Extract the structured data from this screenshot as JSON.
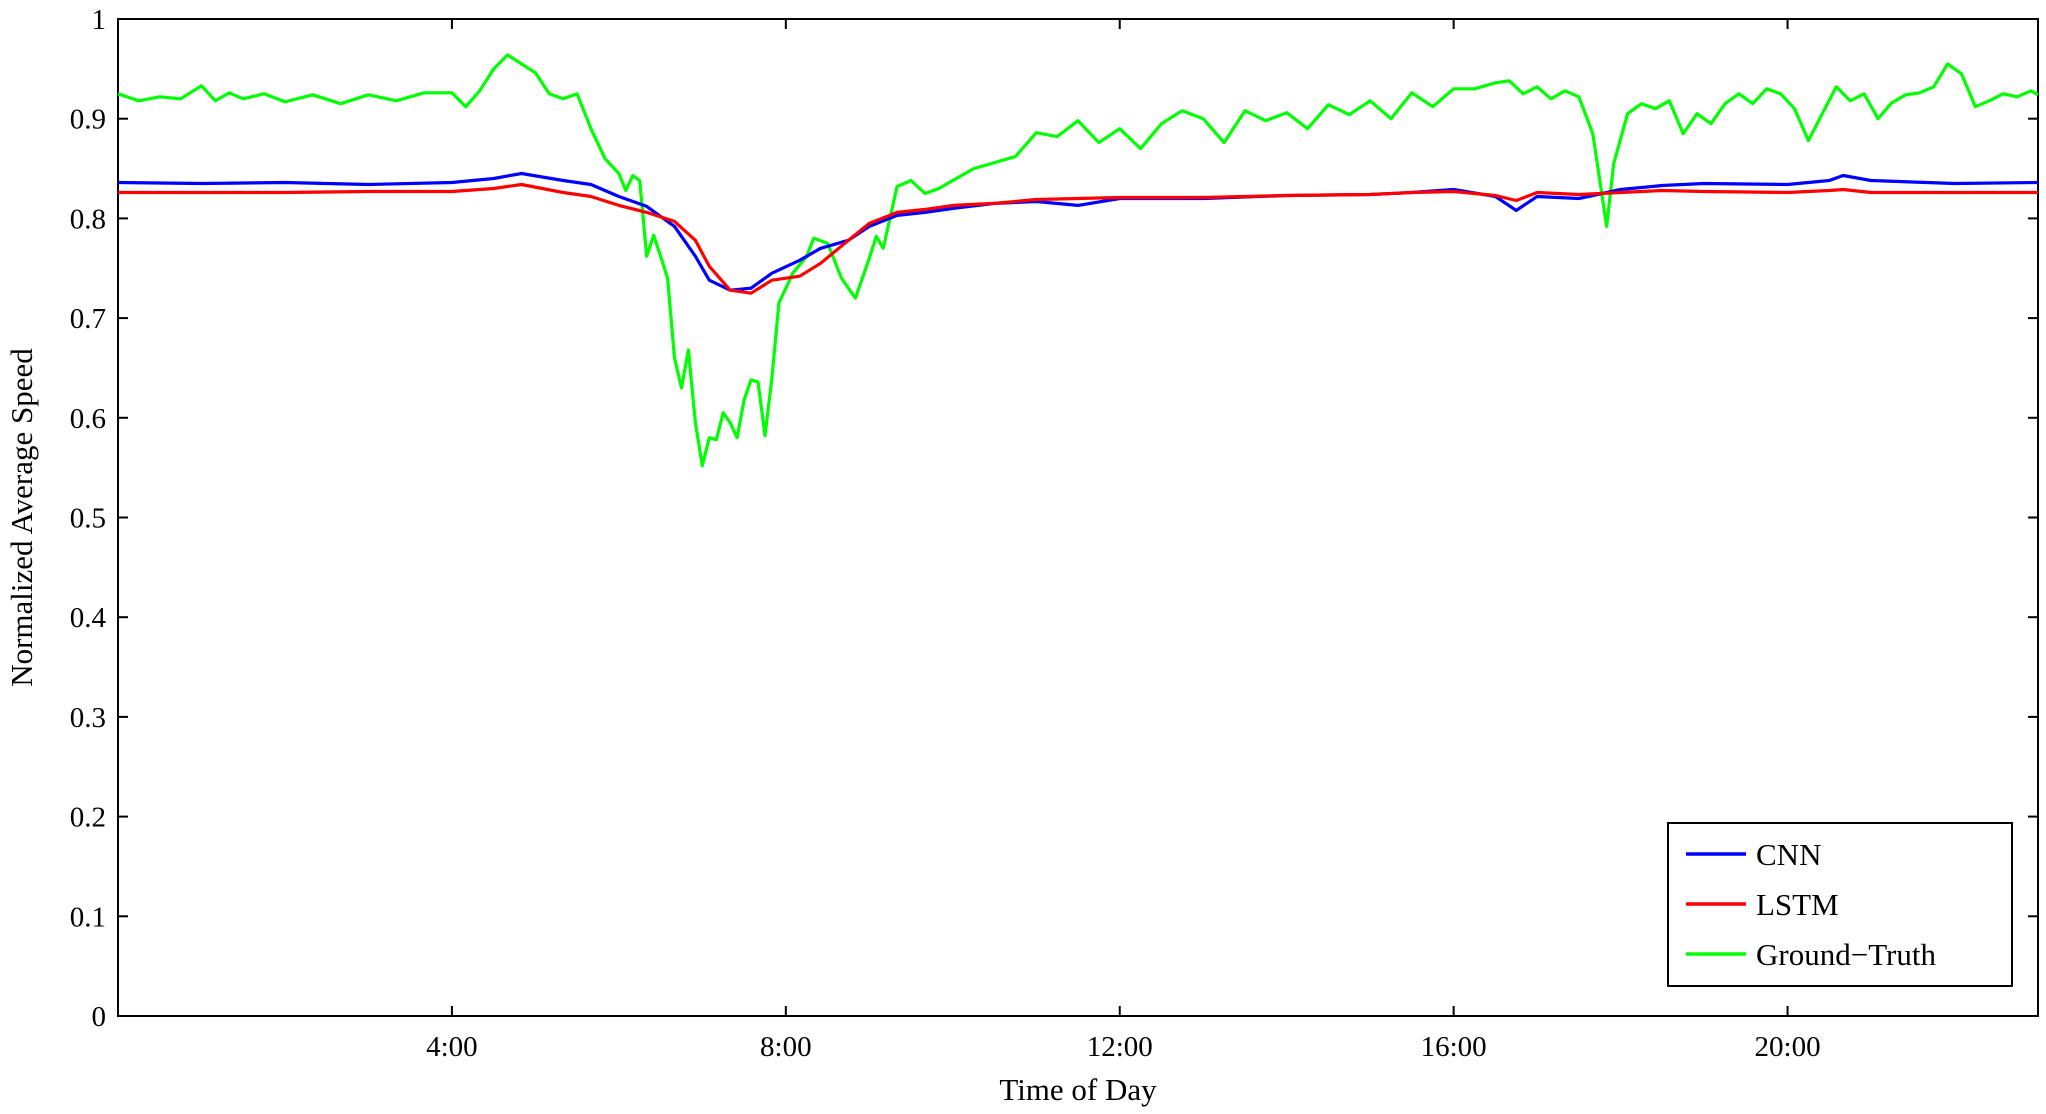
{
  "chart_data": {
    "type": "line",
    "title": "",
    "xlabel": "Time of Day",
    "ylabel": "Normalized Average Speed",
    "xlim": [
      "0:00",
      "23:00"
    ],
    "ylim": [
      0,
      1
    ],
    "x_ticks": [
      "4:00",
      "8:00",
      "12:00",
      "16:00",
      "20:00"
    ],
    "y_ticks": [
      "0",
      "0.1",
      "0.2",
      "0.3",
      "0.4",
      "0.5",
      "0.6",
      "0.7",
      "0.8",
      "0.9",
      "1"
    ],
    "grid": false,
    "legend_position": "bottom-right",
    "series": [
      {
        "name": "CNN",
        "color": "#0000ff",
        "points": [
          [
            "0:00",
            0.836
          ],
          [
            "1:00",
            0.835
          ],
          [
            "2:00",
            0.836
          ],
          [
            "3:00",
            0.834
          ],
          [
            "4:00",
            0.836
          ],
          [
            "4:30",
            0.84
          ],
          [
            "4:50",
            0.845
          ],
          [
            "5:20",
            0.838
          ],
          [
            "5:40",
            0.834
          ],
          [
            "6:00",
            0.822
          ],
          [
            "6:20",
            0.812
          ],
          [
            "6:40",
            0.792
          ],
          [
            "6:55",
            0.762
          ],
          [
            "7:05",
            0.738
          ],
          [
            "7:20",
            0.728
          ],
          [
            "7:35",
            0.73
          ],
          [
            "7:50",
            0.745
          ],
          [
            "8:10",
            0.758
          ],
          [
            "8:25",
            0.77
          ],
          [
            "8:45",
            0.778
          ],
          [
            "9:00",
            0.792
          ],
          [
            "9:20",
            0.803
          ],
          [
            "9:40",
            0.806
          ],
          [
            "10:00",
            0.81
          ],
          [
            "10:30",
            0.815
          ],
          [
            "11:00",
            0.817
          ],
          [
            "11:30",
            0.813
          ],
          [
            "12:00",
            0.82
          ],
          [
            "13:00",
            0.82
          ],
          [
            "14:00",
            0.823
          ],
          [
            "15:00",
            0.824
          ],
          [
            "15:30",
            0.826
          ],
          [
            "16:00",
            0.829
          ],
          [
            "16:30",
            0.822
          ],
          [
            "16:45",
            0.808
          ],
          [
            "17:00",
            0.822
          ],
          [
            "17:30",
            0.82
          ],
          [
            "18:00",
            0.829
          ],
          [
            "18:30",
            0.833
          ],
          [
            "19:00",
            0.835
          ],
          [
            "20:00",
            0.834
          ],
          [
            "20:30",
            0.838
          ],
          [
            "20:40",
            0.843
          ],
          [
            "21:00",
            0.838
          ],
          [
            "22:00",
            0.835
          ],
          [
            "23:00",
            0.836
          ]
        ]
      },
      {
        "name": "LSTM",
        "color": "#ff0000",
        "points": [
          [
            "0:00",
            0.826
          ],
          [
            "1:00",
            0.826
          ],
          [
            "2:00",
            0.826
          ],
          [
            "3:00",
            0.827
          ],
          [
            "4:00",
            0.827
          ],
          [
            "4:30",
            0.83
          ],
          [
            "4:50",
            0.834
          ],
          [
            "5:20",
            0.826
          ],
          [
            "5:40",
            0.822
          ],
          [
            "6:00",
            0.813
          ],
          [
            "6:20",
            0.806
          ],
          [
            "6:40",
            0.797
          ],
          [
            "6:55",
            0.778
          ],
          [
            "7:05",
            0.752
          ],
          [
            "7:20",
            0.728
          ],
          [
            "7:35",
            0.725
          ],
          [
            "7:50",
            0.738
          ],
          [
            "8:10",
            0.742
          ],
          [
            "8:25",
            0.755
          ],
          [
            "8:45",
            0.778
          ],
          [
            "9:00",
            0.795
          ],
          [
            "9:20",
            0.806
          ],
          [
            "9:40",
            0.809
          ],
          [
            "10:00",
            0.813
          ],
          [
            "10:30",
            0.815
          ],
          [
            "11:00",
            0.819
          ],
          [
            "11:30",
            0.82
          ],
          [
            "12:00",
            0.821
          ],
          [
            "13:00",
            0.821
          ],
          [
            "14:00",
            0.823
          ],
          [
            "15:00",
            0.824
          ],
          [
            "15:30",
            0.826
          ],
          [
            "16:00",
            0.827
          ],
          [
            "16:30",
            0.823
          ],
          [
            "16:45",
            0.818
          ],
          [
            "17:00",
            0.826
          ],
          [
            "17:30",
            0.824
          ],
          [
            "18:00",
            0.826
          ],
          [
            "18:30",
            0.828
          ],
          [
            "19:00",
            0.827
          ],
          [
            "20:00",
            0.826
          ],
          [
            "20:30",
            0.828
          ],
          [
            "20:40",
            0.829
          ],
          [
            "21:00",
            0.826
          ],
          [
            "22:00",
            0.826
          ],
          [
            "23:00",
            0.826
          ]
        ]
      },
      {
        "name": "Ground−Truth",
        "color": "#00ff00",
        "points": [
          [
            "0:00",
            0.925
          ],
          [
            "0:15",
            0.918
          ],
          [
            "0:30",
            0.922
          ],
          [
            "0:45",
            0.92
          ],
          [
            "1:00",
            0.933
          ],
          [
            "1:10",
            0.918
          ],
          [
            "1:20",
            0.926
          ],
          [
            "1:30",
            0.92
          ],
          [
            "1:45",
            0.925
          ],
          [
            "2:00",
            0.917
          ],
          [
            "2:20",
            0.924
          ],
          [
            "2:40",
            0.915
          ],
          [
            "3:00",
            0.924
          ],
          [
            "3:20",
            0.918
          ],
          [
            "3:40",
            0.926
          ],
          [
            "4:00",
            0.926
          ],
          [
            "4:10",
            0.912
          ],
          [
            "4:20",
            0.928
          ],
          [
            "4:30",
            0.95
          ],
          [
            "4:40",
            0.964
          ],
          [
            "4:50",
            0.955
          ],
          [
            "5:00",
            0.946
          ],
          [
            "5:10",
            0.925
          ],
          [
            "5:20",
            0.92
          ],
          [
            "5:30",
            0.925
          ],
          [
            "5:40",
            0.89
          ],
          [
            "5:50",
            0.86
          ],
          [
            "6:00",
            0.845
          ],
          [
            "6:05",
            0.828
          ],
          [
            "6:10",
            0.843
          ],
          [
            "6:15",
            0.838
          ],
          [
            "6:20",
            0.762
          ],
          [
            "6:25",
            0.783
          ],
          [
            "6:30",
            0.762
          ],
          [
            "6:35",
            0.74
          ],
          [
            "6:40",
            0.66
          ],
          [
            "6:45",
            0.63
          ],
          [
            "6:50",
            0.668
          ],
          [
            "6:55",
            0.595
          ],
          [
            "7:00",
            0.552
          ],
          [
            "7:05",
            0.58
          ],
          [
            "7:10",
            0.578
          ],
          [
            "7:15",
            0.605
          ],
          [
            "7:20",
            0.595
          ],
          [
            "7:25",
            0.58
          ],
          [
            "7:30",
            0.618
          ],
          [
            "7:35",
            0.638
          ],
          [
            "7:40",
            0.636
          ],
          [
            "7:45",
            0.582
          ],
          [
            "7:50",
            0.64
          ],
          [
            "7:55",
            0.715
          ],
          [
            "8:05",
            0.745
          ],
          [
            "8:15",
            0.762
          ],
          [
            "8:20",
            0.78
          ],
          [
            "8:30",
            0.775
          ],
          [
            "8:40",
            0.74
          ],
          [
            "8:50",
            0.72
          ],
          [
            "9:00",
            0.76
          ],
          [
            "9:05",
            0.782
          ],
          [
            "9:10",
            0.77
          ],
          [
            "9:20",
            0.832
          ],
          [
            "9:30",
            0.838
          ],
          [
            "9:40",
            0.825
          ],
          [
            "9:50",
            0.83
          ],
          [
            "10:00",
            0.838
          ],
          [
            "10:15",
            0.85
          ],
          [
            "10:30",
            0.856
          ],
          [
            "10:45",
            0.862
          ],
          [
            "11:00",
            0.886
          ],
          [
            "11:15",
            0.882
          ],
          [
            "11:30",
            0.898
          ],
          [
            "11:45",
            0.876
          ],
          [
            "12:00",
            0.89
          ],
          [
            "12:15",
            0.87
          ],
          [
            "12:30",
            0.895
          ],
          [
            "12:45",
            0.908
          ],
          [
            "13:00",
            0.9
          ],
          [
            "13:15",
            0.876
          ],
          [
            "13:30",
            0.908
          ],
          [
            "13:45",
            0.898
          ],
          [
            "14:00",
            0.906
          ],
          [
            "14:15",
            0.89
          ],
          [
            "14:30",
            0.914
          ],
          [
            "14:45",
            0.904
          ],
          [
            "15:00",
            0.918
          ],
          [
            "15:15",
            0.9
          ],
          [
            "15:30",
            0.926
          ],
          [
            "15:45",
            0.912
          ],
          [
            "16:00",
            0.93
          ],
          [
            "16:15",
            0.93
          ],
          [
            "16:30",
            0.936
          ],
          [
            "16:40",
            0.938
          ],
          [
            "16:50",
            0.925
          ],
          [
            "17:00",
            0.932
          ],
          [
            "17:10",
            0.92
          ],
          [
            "17:20",
            0.928
          ],
          [
            "17:30",
            0.922
          ],
          [
            "17:40",
            0.885
          ],
          [
            "17:50",
            0.792
          ],
          [
            "17:55",
            0.855
          ],
          [
            "18:05",
            0.905
          ],
          [
            "18:15",
            0.915
          ],
          [
            "18:25",
            0.91
          ],
          [
            "18:35",
            0.918
          ],
          [
            "18:45",
            0.885
          ],
          [
            "18:55",
            0.905
          ],
          [
            "19:05",
            0.895
          ],
          [
            "19:15",
            0.915
          ],
          [
            "19:25",
            0.925
          ],
          [
            "19:35",
            0.915
          ],
          [
            "19:45",
            0.93
          ],
          [
            "19:55",
            0.925
          ],
          [
            "20:05",
            0.91
          ],
          [
            "20:15",
            0.878
          ],
          [
            "20:25",
            0.905
          ],
          [
            "20:35",
            0.932
          ],
          [
            "20:45",
            0.918
          ],
          [
            "20:55",
            0.925
          ],
          [
            "21:05",
            0.9
          ],
          [
            "21:15",
            0.916
          ],
          [
            "21:25",
            0.924
          ],
          [
            "21:35",
            0.926
          ],
          [
            "21:45",
            0.932
          ],
          [
            "21:55",
            0.955
          ],
          [
            "22:05",
            0.945
          ],
          [
            "22:15",
            0.912
          ],
          [
            "22:25",
            0.918
          ],
          [
            "22:35",
            0.925
          ],
          [
            "22:45",
            0.922
          ],
          [
            "22:55",
            0.928
          ],
          [
            "23:00",
            0.924
          ]
        ]
      }
    ]
  }
}
